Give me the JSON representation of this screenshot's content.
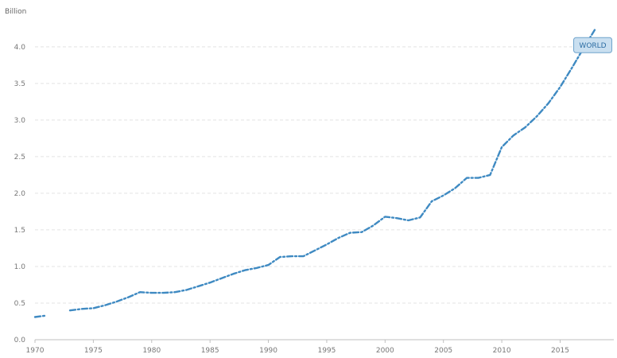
{
  "chart_data": {
    "type": "line",
    "unit_label": "Billion",
    "x_ticks": [
      "1970",
      "1975",
      "1980",
      "1985",
      "1990",
      "1995",
      "2000",
      "2005",
      "2010",
      "2015"
    ],
    "y_ticks": [
      "0.0",
      "0.5",
      "1.0",
      "1.5",
      "2.0",
      "2.5",
      "3.0",
      "3.5",
      "4.0"
    ],
    "xlim": [
      1970,
      2019.6
    ],
    "ylim": [
      0,
      4.4
    ],
    "grid": true,
    "series": [
      {
        "name": "WORLD",
        "color": "#3f8ac2",
        "points": [
          [
            1970,
            0.31
          ],
          [
            1971,
            0.33
          ],
          [
            1972,
            null
          ],
          [
            1973,
            0.4
          ],
          [
            1974,
            0.42
          ],
          [
            1975,
            0.43
          ],
          [
            1976,
            0.47
          ],
          [
            1977,
            0.52
          ],
          [
            1978,
            0.58
          ],
          [
            1979,
            0.65
          ],
          [
            1980,
            0.64
          ],
          [
            1981,
            0.64
          ],
          [
            1982,
            0.65
          ],
          [
            1983,
            0.68
          ],
          [
            1984,
            0.73
          ],
          [
            1985,
            0.78
          ],
          [
            1986,
            0.84
          ],
          [
            1987,
            0.9
          ],
          [
            1988,
            0.95
          ],
          [
            1989,
            0.98
          ],
          [
            1990,
            1.02
          ],
          [
            1991,
            1.13
          ],
          [
            1992,
            1.14
          ],
          [
            1993,
            1.14
          ],
          [
            1994,
            1.22
          ],
          [
            1995,
            1.3
          ],
          [
            1996,
            1.39
          ],
          [
            1997,
            1.46
          ],
          [
            1998,
            1.47
          ],
          [
            1999,
            1.56
          ],
          [
            2000,
            1.68
          ],
          [
            2001,
            1.66
          ],
          [
            2002,
            1.63
          ],
          [
            2003,
            1.67
          ],
          [
            2004,
            1.89
          ],
          [
            2005,
            1.97
          ],
          [
            2006,
            2.07
          ],
          [
            2007,
            2.21
          ],
          [
            2008,
            2.21
          ],
          [
            2009,
            2.25
          ],
          [
            2010,
            2.63
          ],
          [
            2011,
            2.79
          ],
          [
            2012,
            2.9
          ],
          [
            2013,
            3.05
          ],
          [
            2014,
            3.23
          ],
          [
            2015,
            3.45
          ],
          [
            2016,
            3.71
          ],
          [
            2017,
            3.98
          ],
          [
            2018,
            4.24
          ]
        ]
      }
    ]
  }
}
